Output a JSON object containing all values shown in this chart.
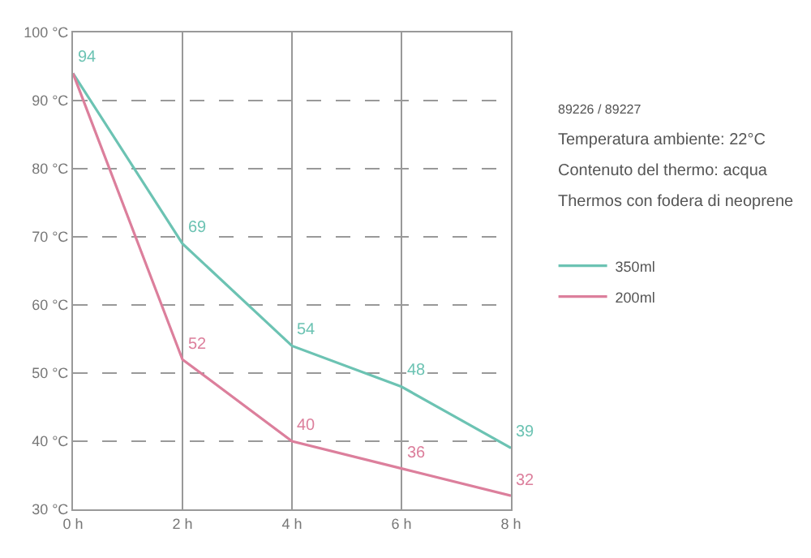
{
  "chart_data": {
    "type": "line",
    "x": [
      0,
      2,
      4,
      6,
      8
    ],
    "series": [
      {
        "name": "350ml",
        "color": "#6cc3b3",
        "values": [
          94,
          69,
          54,
          48,
          39
        ],
        "value_labels": [
          "94",
          "69",
          "54",
          "48",
          "39"
        ]
      },
      {
        "name": "200ml",
        "color": "#dc7f9c",
        "values": [
          94,
          52,
          40,
          36,
          32
        ],
        "value_labels": [
          null,
          "52",
          "40",
          "36",
          "32"
        ]
      }
    ],
    "xlim": [
      0,
      8
    ],
    "xticks": [
      {
        "value": 0,
        "label": "0 h"
      },
      {
        "value": 2,
        "label": "2 h"
      },
      {
        "value": 4,
        "label": "4 h"
      },
      {
        "value": 6,
        "label": "6 h"
      },
      {
        "value": 8,
        "label": "8 h"
      }
    ],
    "ylim": [
      30,
      100
    ],
    "yticks": [
      {
        "value": 30,
        "label": "30 °C"
      },
      {
        "value": 40,
        "label": "40 °C"
      },
      {
        "value": 50,
        "label": "50 °C"
      },
      {
        "value": 60,
        "label": "60 °C"
      },
      {
        "value": 70,
        "label": "70 °C"
      },
      {
        "value": 80,
        "label": "80 °C"
      },
      {
        "value": 90,
        "label": "90 °C"
      },
      {
        "value": 100,
        "label": "100 °C"
      }
    ],
    "annotations": [
      "89226 / 89227",
      "Temperatura ambiente: 22°C",
      "Contenuto del thermo: acqua",
      "Thermos con fodera di neoprene"
    ],
    "grid": true,
    "legend": "right",
    "marker": "none",
    "line_style": "solid"
  }
}
